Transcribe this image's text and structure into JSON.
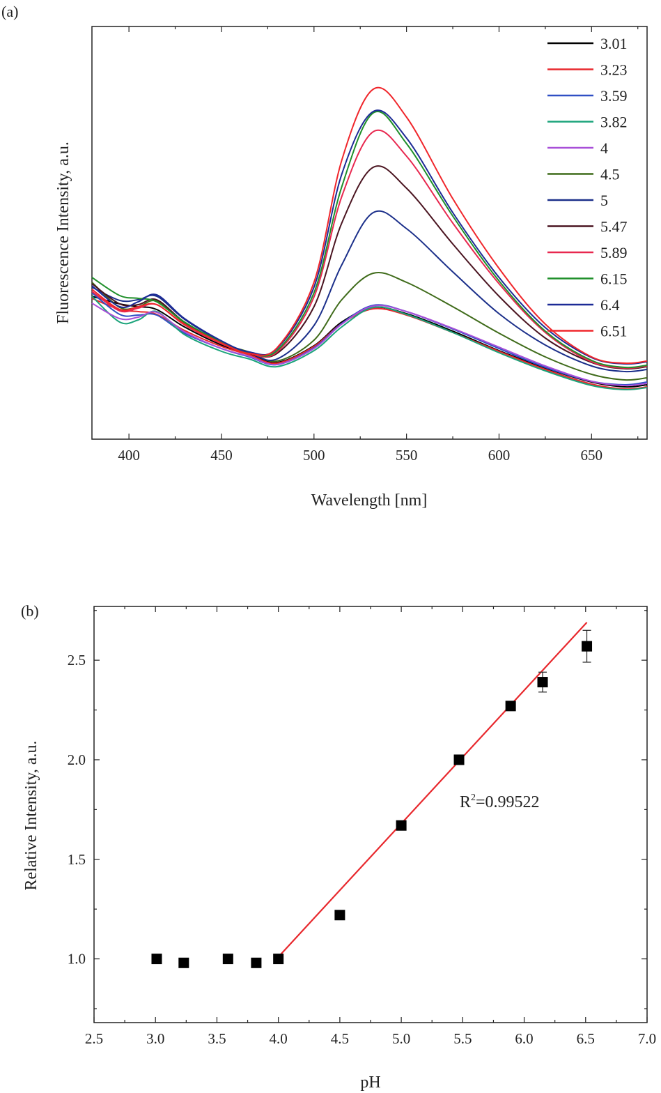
{
  "chart_data": [
    {
      "panel_label": "(a)",
      "type": "line",
      "xlabel": "Wavelength [nm]",
      "ylabel": "Fluorescence Intensity, a.u.",
      "xlim": [
        380,
        680
      ],
      "x_ticks": [
        400,
        450,
        500,
        550,
        600,
        650
      ],
      "y_ticks_shown": false,
      "legend_position": "top-right",
      "x_sample": [
        380,
        395,
        405,
        415,
        430,
        450,
        465,
        480,
        500,
        515,
        532,
        550,
        575,
        600,
        625,
        650,
        668,
        680
      ],
      "series": [
        {
          "name": "3.01",
          "color": "#000000",
          "values": [
            425,
            436,
            440,
            444,
            469,
            495,
            508,
            520,
            496,
            462,
            441,
            450,
            475,
            503,
            528,
            548,
            555,
            552
          ]
        },
        {
          "name": "3.23",
          "color": "#e8282d",
          "values": [
            428,
            444,
            447,
            451,
            474,
            497,
            509,
            521,
            497,
            464,
            443,
            452,
            477,
            504,
            530,
            551,
            558,
            555
          ]
        },
        {
          "name": "3.59",
          "color": "#2f4fc4",
          "values": [
            420,
            451,
            452,
            452,
            478,
            500,
            512,
            523,
            499,
            464,
            438,
            447,
            472,
            500,
            527,
            547,
            552,
            548
          ]
        },
        {
          "name": "3.82",
          "color": "#1aa37a",
          "values": [
            425,
            462,
            459,
            447,
            480,
            504,
            515,
            526,
            503,
            469,
            441,
            451,
            477,
            506,
            532,
            553,
            559,
            556
          ]
        },
        {
          "name": "4",
          "color": "#a84fd8",
          "values": [
            435,
            457,
            455,
            448,
            476,
            500,
            511,
            523,
            500,
            465,
            439,
            447,
            471,
            498,
            525,
            547,
            553,
            550
          ]
        },
        {
          "name": "4.5",
          "color": "#3f6b1a",
          "values": [
            405,
            441,
            440,
            432,
            463,
            492,
            505,
            518,
            488,
            430,
            392,
            405,
            440,
            478,
            512,
            537,
            545,
            542
          ]
        },
        {
          "name": "5",
          "color": "#1b2f8a",
          "values": [
            412,
            431,
            430,
            425,
            458,
            490,
            506,
            515,
            467,
            380,
            305,
            328,
            390,
            450,
            495,
            525,
            533,
            530
          ]
        },
        {
          "name": "5.47",
          "color": "#4a1420",
          "values": [
            407,
            436,
            437,
            430,
            462,
            491,
            506,
            507,
            440,
            320,
            240,
            270,
            350,
            425,
            485,
            520,
            529,
            526
          ]
        },
        {
          "name": "5.89",
          "color": "#e8284f",
          "values": [
            418,
            446,
            442,
            437,
            466,
            493,
            507,
            505,
            426,
            282,
            189,
            224,
            320,
            407,
            477,
            519,
            528,
            525
          ]
        },
        {
          "name": "6.15",
          "color": "#1f8f2a",
          "values": [
            398,
            424,
            428,
            433,
            462,
            491,
            506,
            503,
            420,
            268,
            162,
            206,
            310,
            403,
            475,
            517,
            527,
            524
          ]
        },
        {
          "name": "6.4",
          "color": "#1c2a96",
          "values": [
            410,
            440,
            433,
            423,
            457,
            489,
            505,
            500,
            412,
            250,
            160,
            198,
            305,
            398,
            470,
            513,
            522,
            519
          ]
        },
        {
          "name": "6.51",
          "color": "#f0262b",
          "values": [
            415,
            444,
            440,
            437,
            465,
            492,
            507,
            499,
            405,
            230,
            128,
            168,
            285,
            385,
            465,
            512,
            521,
            518
          ]
        }
      ]
    },
    {
      "panel_label": "(b)",
      "type": "scatter",
      "xlabel": "pH",
      "ylabel": "Relative Intensity,  a.u.",
      "xlim": [
        2.5,
        7.0
      ],
      "ylim": [
        0.68,
        2.77
      ],
      "x_ticks": [
        "2.5",
        "3.0",
        "3.5",
        "4.0",
        "4.5",
        "5.0",
        "5.5",
        "6.0",
        "6.5",
        "7.0"
      ],
      "y_ticks": [
        "1.0",
        "1.5",
        "2.0",
        "2.5"
      ],
      "points": [
        {
          "x": 3.01,
          "y": 1.0
        },
        {
          "x": 3.23,
          "y": 0.98
        },
        {
          "x": 3.59,
          "y": 1.0
        },
        {
          "x": 3.82,
          "y": 0.98
        },
        {
          "x": 4.0,
          "y": 1.0
        },
        {
          "x": 4.5,
          "y": 1.22
        },
        {
          "x": 5.0,
          "y": 1.67
        },
        {
          "x": 5.47,
          "y": 2.0
        },
        {
          "x": 5.89,
          "y": 2.27
        },
        {
          "x": 6.15,
          "y": 2.39,
          "err": 0.05
        },
        {
          "x": 6.51,
          "y": 2.57,
          "err": 0.08
        }
      ],
      "fit_line": {
        "x": [
          3.97,
          6.51
        ],
        "y": [
          0.99,
          2.69
        ],
        "color": "#e8282d"
      },
      "annotation": {
        "base": "R",
        "sup": "2",
        "rest": "=0.99522"
      }
    }
  ]
}
